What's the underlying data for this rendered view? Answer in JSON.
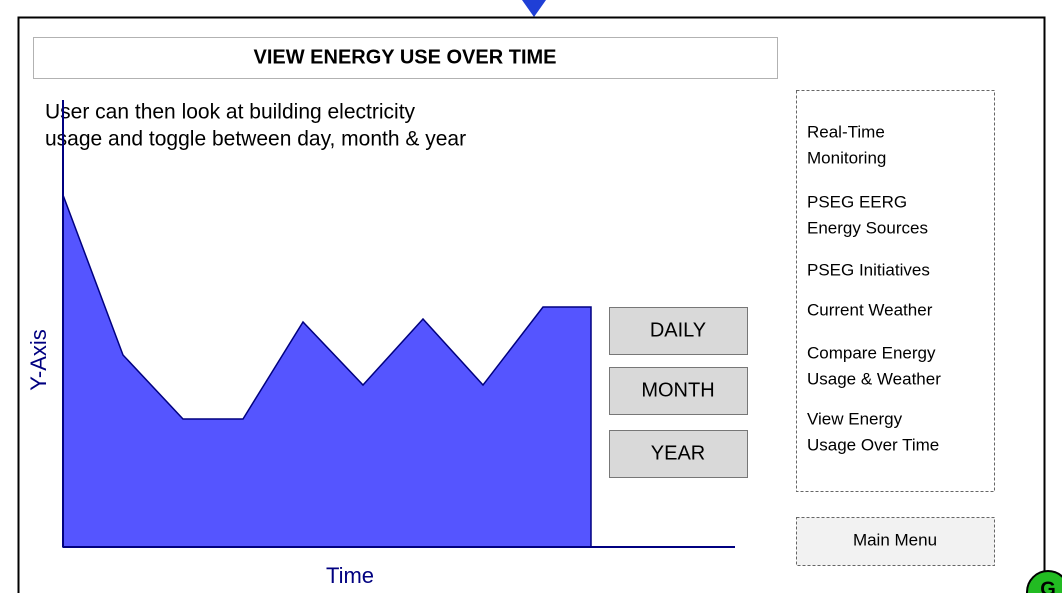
{
  "header": {
    "title": "VIEW ENERGY USE OVER TIME"
  },
  "description": [
    "User can then look at building electricity",
    "usage and toggle between day, month & year"
  ],
  "graph": {
    "y_axis_label": "Y-Axis",
    "x_axis_label": "Time"
  },
  "buttons": [
    "DAILY",
    "MONTH",
    "YEAR"
  ],
  "menu": {
    "items": [
      [
        "Real-Time",
        "Monitoring"
      ],
      [
        "PSEG EERG",
        "Energy Sources"
      ],
      [
        "PSEG Initiatives"
      ],
      [
        "Current Weather"
      ],
      [
        "Compare Energy",
        "Usage & Weather"
      ],
      [
        "View Energy",
        "Usage Over Time"
      ]
    ],
    "main_menu": "Main Menu"
  },
  "badge": "G"
}
